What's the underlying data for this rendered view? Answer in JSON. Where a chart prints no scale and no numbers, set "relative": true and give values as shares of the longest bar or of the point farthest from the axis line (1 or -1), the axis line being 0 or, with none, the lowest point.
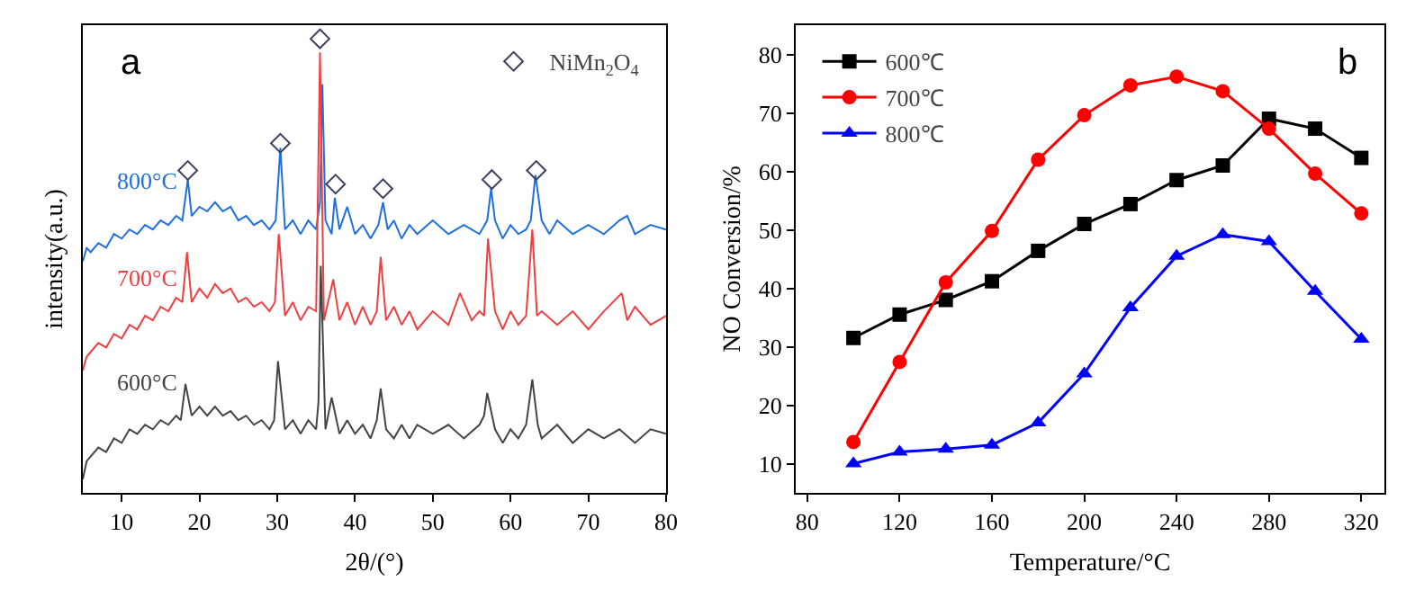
{
  "chart_data": [
    {
      "type": "line",
      "relative": true,
      "xlabel": "2θ/(°)",
      "ylabel": "intensity(a.u.)",
      "annotations": [
        "a"
      ],
      "xlim": [
        5,
        80
      ],
      "xticks": [
        10,
        20,
        30,
        40,
        50,
        60,
        70,
        80
      ],
      "tick_labels": "x",
      "legend": "top right",
      "series": [
        {
          "name": "800°C",
          "color": "#1f6fe0",
          "x": [
            5,
            5.5,
            6,
            7,
            8,
            9,
            10,
            11,
            12,
            13,
            14,
            15,
            16,
            17,
            17.8,
            18.5,
            19,
            20,
            21,
            22,
            23,
            24,
            25,
            26,
            27,
            28,
            29,
            29.8,
            30.4,
            31,
            32,
            33,
            34,
            35,
            35.5,
            35.8,
            36.2,
            37,
            37.4,
            38,
            39,
            40,
            41,
            42,
            43,
            43.6,
            44.2,
            45,
            46,
            47,
            48,
            50,
            52,
            54,
            56,
            57,
            57.5,
            58,
            59,
            60,
            61,
            62,
            62.6,
            63.2,
            64,
            65,
            66,
            68,
            70,
            72,
            74,
            75,
            76,
            78,
            80
          ],
          "values": [
            0.51,
            0.54,
            0.53,
            0.55,
            0.54,
            0.57,
            0.56,
            0.58,
            0.57,
            0.59,
            0.58,
            0.6,
            0.59,
            0.61,
            0.6,
            0.69,
            0.61,
            0.63,
            0.62,
            0.64,
            0.62,
            0.63,
            0.6,
            0.61,
            0.59,
            0.6,
            0.58,
            0.6,
            0.76,
            0.58,
            0.6,
            0.57,
            0.6,
            0.58,
            0.64,
            0.9,
            0.6,
            0.57,
            0.65,
            0.58,
            0.63,
            0.57,
            0.59,
            0.56,
            0.59,
            0.64,
            0.58,
            0.6,
            0.56,
            0.59,
            0.57,
            0.6,
            0.57,
            0.59,
            0.57,
            0.6,
            0.67,
            0.6,
            0.56,
            0.59,
            0.57,
            0.58,
            0.6,
            0.7,
            0.6,
            0.57,
            0.6,
            0.57,
            0.59,
            0.57,
            0.6,
            0.61,
            0.57,
            0.59,
            0.58
          ]
        },
        {
          "name": "700°C",
          "color": "#ee4040",
          "x": [
            5,
            5.5,
            6,
            7,
            8,
            9,
            10,
            11,
            12,
            13,
            14,
            15,
            16,
            17,
            17.8,
            18.4,
            19,
            20,
            21,
            22,
            23,
            24,
            25,
            26,
            27,
            28,
            29,
            29.7,
            30.2,
            31,
            32,
            33,
            34,
            35,
            35.5,
            36,
            37.2,
            38,
            39,
            40,
            41,
            42,
            42.8,
            43.3,
            44,
            45,
            46,
            47,
            48,
            50,
            52,
            53.5,
            55,
            56,
            56.6,
            57.1,
            58,
            59,
            60,
            61,
            62,
            62.8,
            63.4,
            64,
            66,
            68,
            70,
            72,
            74.3,
            75,
            76,
            78,
            80
          ],
          "values": [
            0.27,
            0.3,
            0.31,
            0.33,
            0.32,
            0.35,
            0.34,
            0.37,
            0.36,
            0.39,
            0.38,
            0.41,
            0.4,
            0.43,
            0.42,
            0.53,
            0.42,
            0.45,
            0.43,
            0.46,
            0.44,
            0.45,
            0.42,
            0.43,
            0.41,
            0.42,
            0.4,
            0.42,
            0.57,
            0.39,
            0.42,
            0.38,
            0.41,
            0.4,
            0.97,
            0.38,
            0.47,
            0.38,
            0.42,
            0.37,
            0.41,
            0.37,
            0.4,
            0.52,
            0.38,
            0.41,
            0.37,
            0.4,
            0.36,
            0.4,
            0.37,
            0.44,
            0.38,
            0.4,
            0.39,
            0.56,
            0.4,
            0.36,
            0.4,
            0.37,
            0.39,
            0.58,
            0.39,
            0.4,
            0.37,
            0.4,
            0.36,
            0.4,
            0.44,
            0.38,
            0.41,
            0.37,
            0.39
          ]
        },
        {
          "name": "600°C",
          "color": "#444444",
          "x": [
            5,
            5.5,
            6,
            7,
            8,
            9,
            10,
            11,
            12,
            13,
            14,
            15,
            16,
            17,
            17.6,
            18.2,
            19,
            20,
            21,
            22,
            23,
            24,
            25,
            26,
            27,
            28,
            29,
            29.6,
            30.1,
            31,
            32,
            33,
            34,
            35,
            35.3,
            35.6,
            36.2,
            37,
            38,
            39,
            40,
            41,
            42,
            42.8,
            43.3,
            44,
            45,
            46,
            47,
            48,
            50,
            52,
            54,
            56,
            56.6,
            57,
            58,
            59,
            60,
            61,
            62,
            62.8,
            63.5,
            64,
            66,
            68,
            70,
            72,
            74,
            76,
            78,
            80
          ],
          "values": [
            0.03,
            0.07,
            0.08,
            0.1,
            0.09,
            0.12,
            0.11,
            0.14,
            0.13,
            0.15,
            0.14,
            0.16,
            0.15,
            0.17,
            0.16,
            0.24,
            0.17,
            0.19,
            0.17,
            0.19,
            0.17,
            0.18,
            0.16,
            0.17,
            0.15,
            0.16,
            0.14,
            0.16,
            0.29,
            0.14,
            0.16,
            0.13,
            0.16,
            0.14,
            0.2,
            0.5,
            0.14,
            0.21,
            0.13,
            0.16,
            0.13,
            0.15,
            0.12,
            0.16,
            0.23,
            0.14,
            0.12,
            0.15,
            0.12,
            0.15,
            0.13,
            0.15,
            0.12,
            0.15,
            0.17,
            0.22,
            0.14,
            0.11,
            0.14,
            0.12,
            0.15,
            0.25,
            0.15,
            0.12,
            0.15,
            0.11,
            0.14,
            0.12,
            0.14,
            0.11,
            0.14,
            0.13
          ]
        },
        {
          "name": "NiMn$_{2}$O$_{4}$",
          "type": "scatter",
          "marker": "diamond",
          "color": "#3a4060",
          "x": [
            18.5,
            30.4,
            35.5,
            37.5,
            43.6,
            57.6,
            63.3
          ],
          "values": [
            0.71,
            0.77,
            1.0,
            0.68,
            0.67,
            0.69,
            0.71
          ]
        }
      ]
    },
    {
      "type": "line",
      "xlabel": "Temperature/°C",
      "ylabel": "NO Conversion/%",
      "annotations": [
        "b"
      ],
      "xlim": [
        75,
        330
      ],
      "xticks": [
        80,
        120,
        160,
        200,
        240,
        280,
        320
      ],
      "ylim": [
        5,
        85
      ],
      "yticks": [
        10,
        20,
        30,
        40,
        50,
        60,
        70,
        80
      ],
      "legend": "top left",
      "x": [
        100,
        120,
        140,
        160,
        180,
        200,
        220,
        240,
        260,
        280,
        300,
        320
      ],
      "series": [
        {
          "name": "600℃",
          "color": "#000000",
          "marker": "square",
          "values": [
            31.5,
            35.5,
            38,
            41.2,
            46.4,
            51,
            54.4,
            58.5,
            61,
            69,
            67.3,
            62.3
          ]
        },
        {
          "name": "700℃",
          "color": "#ff0000",
          "marker": "circle",
          "values": [
            13.7,
            27.4,
            41,
            49.8,
            62,
            69.6,
            74.7,
            76.2,
            73.7,
            67.3,
            59.6,
            52.8
          ]
        },
        {
          "name": "800℃",
          "color": "#0000ff",
          "marker": "triangle",
          "values": [
            10,
            12,
            12.5,
            13.2,
            17,
            25.4,
            36.7,
            45.5,
            49.2,
            48,
            39.5,
            31.3
          ]
        }
      ]
    }
  ]
}
